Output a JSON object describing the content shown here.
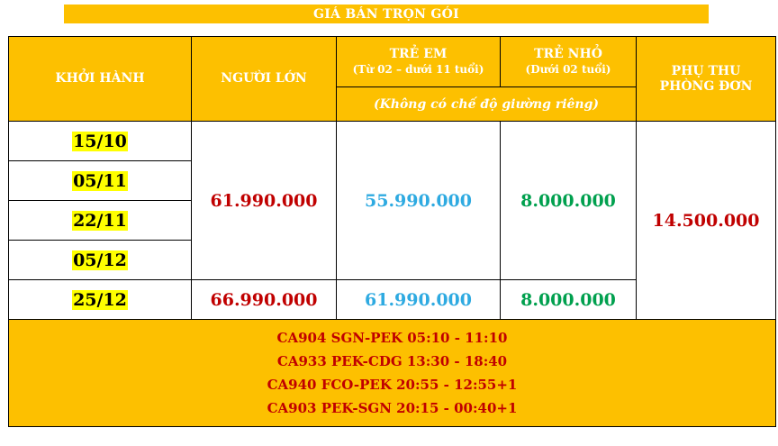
{
  "banner": "GIÁ BÁN TRỌN GÓI",
  "headers": {
    "depart": "KHỞI HÀNH",
    "adult": "NGƯỜI LỚN",
    "child": "TRẺ EM",
    "child_sub": "(Từ 02 – dưới 11 tuổi)",
    "infant": "TRẺ NHỎ",
    "infant_sub": "(Dưới 02 tuổi)",
    "single_line1": "PHỤ THU",
    "single_line2": "PHÒNG ĐƠN",
    "note": "(Không có chế độ giường riêng)"
  },
  "dates": [
    "15/10",
    "05/11",
    "22/11",
    "05/12",
    "25/12"
  ],
  "group1": {
    "adult": "61.990.000",
    "child": "55.990.000",
    "infant": "8.000.000"
  },
  "group2": {
    "adult": "66.990.000",
    "child": "61.990.000",
    "infant": "8.000.000"
  },
  "single_supplement": "14.500.000",
  "flights": [
    "CA904 SGN-PEK 05:10 - 11:10",
    "CA933 PEK-CDG 13:30 - 18:40",
    "CA940 FCO-PEK 20:55 - 12:55+1",
    "CA903 PEK-SGN 20:15 - 00:40+1"
  ]
}
